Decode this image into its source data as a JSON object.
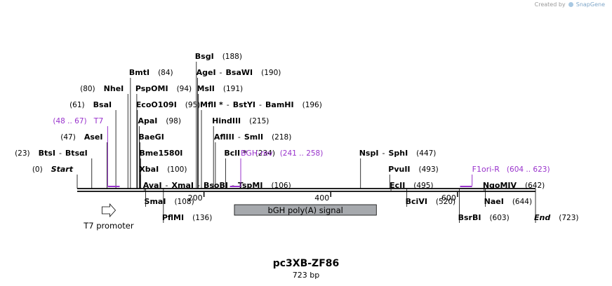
{
  "credit": {
    "prefix": "Created by",
    "brand": "SnapGene"
  },
  "map": {
    "name": "pc3XB-ZF86",
    "length_label": "723 bp",
    "length": 723,
    "ruler_ticks": [
      {
        "pos": 200,
        "label": "200"
      },
      {
        "pos": 400,
        "label": "400"
      },
      {
        "pos": 600,
        "label": "600"
      }
    ],
    "sites": [
      {
        "pos": 0,
        "row": 0,
        "parts": [
          {
            "t": "(0)",
            "s": "num"
          },
          {
            "t": "Start",
            "s": "ital"
          }
        ]
      },
      {
        "pos": 23,
        "row": 1,
        "parts": [
          {
            "t": "(23)",
            "s": "num"
          },
          {
            "t": "BtsI",
            "s": "b"
          },
          {
            "t": "-",
            "s": "d"
          },
          {
            "t": "BtsαI",
            "s": "b"
          }
        ]
      },
      {
        "pos": 47,
        "row": 2,
        "parts": [
          {
            "t": "(47)",
            "s": "num"
          },
          {
            "t": "AseI",
            "s": "b"
          }
        ]
      },
      {
        "pos": 61,
        "row": 4,
        "parts": [
          {
            "t": "(61)",
            "s": "num"
          },
          {
            "t": "BsaI",
            "s": "b"
          }
        ]
      },
      {
        "pos": 80,
        "row": 5,
        "parts": [
          {
            "t": "(80)",
            "s": "num"
          },
          {
            "t": "NheI",
            "s": "b"
          }
        ]
      },
      {
        "pos": 84,
        "row": 6,
        "parts": [
          {
            "t": "BmtI",
            "s": "b"
          },
          {
            "t": "(84)",
            "s": "num"
          }
        ]
      },
      {
        "pos": 94,
        "row": 5,
        "parts": [
          {
            "t": "PspOMI",
            "s": "b"
          },
          {
            "t": "(94)",
            "s": "num"
          }
        ]
      },
      {
        "pos": 95,
        "row": 4,
        "parts": [
          {
            "t": "EcoO109I",
            "s": "b"
          },
          {
            "t": "(95)",
            "s": "num"
          }
        ]
      },
      {
        "pos": 98,
        "row": 3,
        "parts": [
          {
            "t": "ApaI",
            "s": "b"
          },
          {
            "t": "(98)",
            "s": "num"
          }
        ]
      },
      {
        "pos": 99,
        "row": 2,
        "parts": [
          {
            "t": "BaeGI",
            "s": "b"
          }
        ]
      },
      {
        "pos": 100,
        "row": 1,
        "parts": [
          {
            "t": "Bme1580I",
            "s": "b"
          }
        ]
      },
      {
        "pos": 100,
        "row": 0,
        "parts": [
          {
            "t": "XbaI",
            "s": "b"
          },
          {
            "t": "(100)",
            "s": "num"
          }
        ]
      },
      {
        "pos": 106,
        "row": -1,
        "parts": [
          {
            "t": "AvaI",
            "s": "b"
          },
          {
            "t": "-",
            "s": "d"
          },
          {
            "t": "XmaI",
            "s": "b"
          },
          {
            "t": "-",
            "s": "d"
          },
          {
            "t": "BsoBI",
            "s": "b"
          },
          {
            "t": "-",
            "s": "d"
          },
          {
            "t": "TspMI",
            "s": "b"
          },
          {
            "t": "(106)",
            "s": "num"
          }
        ]
      },
      {
        "pos": 108,
        "row": -2,
        "parts": [
          {
            "t": "SmaI",
            "s": "b"
          },
          {
            "t": "(108)",
            "s": "num"
          }
        ]
      },
      {
        "pos": 136,
        "row": -3,
        "parts": [
          {
            "t": "PflMI",
            "s": "b"
          },
          {
            "t": "(136)",
            "s": "num"
          }
        ]
      },
      {
        "pos": 188,
        "row": 7,
        "parts": [
          {
            "t": "BsgI",
            "s": "b"
          },
          {
            "t": "(188)",
            "s": "num"
          }
        ]
      },
      {
        "pos": 190,
        "row": 6,
        "parts": [
          {
            "t": "AgeI",
            "s": "b"
          },
          {
            "t": "-",
            "s": "d"
          },
          {
            "t": "BsaWI",
            "s": "b"
          },
          {
            "t": "(190)",
            "s": "num"
          }
        ]
      },
      {
        "pos": 191,
        "row": 5,
        "parts": [
          {
            "t": "MslI",
            "s": "b"
          },
          {
            "t": "(191)",
            "s": "num"
          }
        ]
      },
      {
        "pos": 196,
        "row": 4,
        "parts": [
          {
            "t": "MflI *",
            "s": "b"
          },
          {
            "t": "-",
            "s": "d"
          },
          {
            "t": "BstYI",
            "s": "b"
          },
          {
            "t": "-",
            "s": "d"
          },
          {
            "t": "BamHI",
            "s": "b"
          },
          {
            "t": "(196)",
            "s": "num"
          }
        ]
      },
      {
        "pos": 215,
        "row": 3,
        "parts": [
          {
            "t": "HindIII",
            "s": "b"
          },
          {
            "t": "(215)",
            "s": "num"
          }
        ]
      },
      {
        "pos": 218,
        "row": 2,
        "parts": [
          {
            "t": "AflIII",
            "s": "b"
          },
          {
            "t": "-",
            "s": "d"
          },
          {
            "t": "SmlI",
            "s": "b"
          },
          {
            "t": "(218)",
            "s": "num"
          }
        ]
      },
      {
        "pos": 234,
        "row": 1,
        "parts": [
          {
            "t": "BclI *",
            "s": "b"
          },
          {
            "t": "(234)",
            "s": "num"
          }
        ]
      },
      {
        "pos": 447,
        "row": 1,
        "parts": [
          {
            "t": "NspI",
            "s": "b"
          },
          {
            "t": "-",
            "s": "d"
          },
          {
            "t": "SphI",
            "s": "b"
          },
          {
            "t": "(447)",
            "s": "num"
          }
        ]
      },
      {
        "pos": 493,
        "row": 0,
        "parts": [
          {
            "t": "PvuII",
            "s": "b"
          },
          {
            "t": "(493)",
            "s": "num"
          }
        ]
      },
      {
        "pos": 495,
        "row": -1,
        "parts": [
          {
            "t": "EcII",
            "s": "b"
          },
          {
            "t": "(495)",
            "s": "num"
          }
        ]
      },
      {
        "pos": 520,
        "row": -2,
        "parts": [
          {
            "t": "BciVI",
            "s": "b"
          },
          {
            "t": "(520)",
            "s": "num"
          }
        ]
      },
      {
        "pos": 603,
        "row": -3,
        "parts": [
          {
            "t": "BsrBI",
            "s": "b"
          },
          {
            "t": "(603)",
            "s": "num"
          }
        ]
      },
      {
        "pos": 642,
        "row": -1,
        "parts": [
          {
            "t": "NgoMIV",
            "s": "b"
          },
          {
            "t": "(642)",
            "s": "num"
          }
        ]
      },
      {
        "pos": 644,
        "row": -2,
        "parts": [
          {
            "t": "NaeI",
            "s": "b"
          },
          {
            "t": "(644)",
            "s": "num"
          }
        ]
      },
      {
        "pos": 723,
        "row": -3,
        "parts": [
          {
            "t": "End",
            "s": "ital"
          },
          {
            "t": "(723)",
            "s": "num"
          }
        ]
      }
    ],
    "primers": [
      {
        "name": "T7",
        "range": "(48 .. 67)",
        "start": 48,
        "end": 67,
        "row": 3,
        "name_first": false
      },
      {
        "name": "BGH-rev",
        "range": "(241 .. 258)",
        "start": 241,
        "end": 258,
        "row": 1,
        "name_first": true
      },
      {
        "name": "F1ori-R",
        "range": "(604 .. 623)",
        "start": 604,
        "end": 623,
        "row": 0,
        "name_first": true
      }
    ],
    "features": [
      {
        "name": "T7 promoter",
        "start": 48,
        "end": 67,
        "shape": "arrow",
        "fill": "#ffffff"
      },
      {
        "name": "bGH poly(A) signal",
        "start": 248,
        "end": 472,
        "shape": "box",
        "fill": "#a6a9ad"
      }
    ],
    "colors": {
      "backbone": "#222222",
      "primer": "#9933cc",
      "text": "#000000"
    }
  }
}
